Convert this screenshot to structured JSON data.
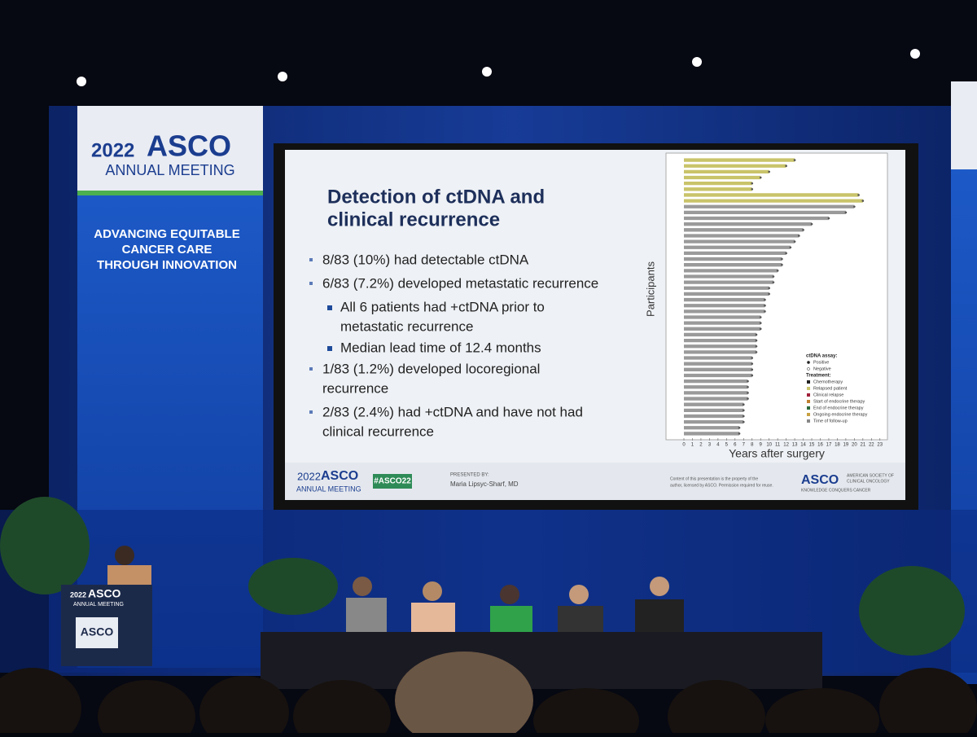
{
  "banner": {
    "year": "2022",
    "brand": "ASCO",
    "meeting": "ANNUAL MEETING",
    "lines": [
      "ADVANCING EQUITABLE",
      "CANCER CARE",
      "THROUGH INNOVATION"
    ]
  },
  "slide": {
    "title": [
      "Detection of ctDNA and",
      "clinical recurrence"
    ],
    "bullets": [
      {
        "level": 1,
        "lines": [
          "8/83 (10%) had detectable ctDNA"
        ]
      },
      {
        "level": 1,
        "lines": [
          "6/83 (7.2%) developed metastatic recurrence"
        ]
      },
      {
        "level": 2,
        "lines": [
          "All 6 patients had +ctDNA prior to",
          "metastatic recurrence"
        ]
      },
      {
        "level": 2,
        "lines": [
          "Median lead time of 12.4 months"
        ]
      },
      {
        "level": 1,
        "lines": [
          "1/83 (1.2%) developed locoregional",
          "recurrence"
        ]
      },
      {
        "level": 1,
        "lines": [
          "2/83 (2.4%) had +ctDNA and have not had",
          "clinical recurrence"
        ]
      }
    ],
    "footer": {
      "year": "2022",
      "brand": "ASCO",
      "meeting": "ANNUAL MEETING",
      "hashtag": "#ASCO22",
      "presented_by": "PRESENTED BY:",
      "presenter": "Maria Lipsyc-Sharf, MD",
      "notice": [
        "Content of this presentation is the property of the",
        "author, licensed by ASCO. Permission required for reuse."
      ],
      "society": "ASCO",
      "society_full": [
        "AMERICAN SOCIETY OF",
        "CLINICAL ONCOLOGY"
      ],
      "motto": "KNOWLEDGE CONQUERS CANCER"
    }
  },
  "chart_data": {
    "type": "swimmer",
    "ylabel": "Participants",
    "xlabel": "Years after surgery",
    "xlim": [
      0,
      23.5
    ],
    "xticks": [
      0,
      1,
      2,
      3,
      4,
      5,
      6,
      7,
      8,
      9,
      10,
      11,
      12,
      13,
      14,
      15,
      16,
      17,
      18,
      19,
      20,
      21,
      22,
      23
    ],
    "series": [
      {
        "color": "#c9c46a",
        "values": [
          13,
          12,
          10,
          9,
          8,
          8,
          20.5,
          21
        ]
      },
      {
        "color": "#9a9a9a",
        "values": [
          20,
          19,
          17,
          15,
          14,
          13.5,
          13,
          12.5,
          12,
          11.5,
          11.5,
          11,
          10.5,
          10.5,
          10,
          10,
          9.5,
          9.5,
          9.5,
          9,
          9,
          9,
          8.5,
          8.5,
          8.5,
          8.5,
          8,
          8,
          8,
          8,
          7.5,
          7.5,
          7.5,
          7.5,
          7,
          7,
          7,
          7,
          6.5,
          6.5
        ]
      }
    ],
    "legend": {
      "assay_title": "ctDNA assay:",
      "assay": [
        "Positive",
        "Negative"
      ],
      "treatment_title": "Treatment:",
      "treatment": [
        {
          "label": "Chemotherapy",
          "color": "#222"
        },
        {
          "label": "Relapsed patient",
          "color": "#c9c46a"
        },
        {
          "label": "Clinical relapse",
          "color": "#a0203a"
        },
        {
          "label": "Start of endocrine therapy",
          "color": "#c08030"
        },
        {
          "label": "End of endocrine therapy",
          "color": "#2a6a3a"
        },
        {
          "label": "Ongoing endocrine therapy",
          "color": "#c8a040"
        },
        {
          "label": "Time of follow-up",
          "color": "#888"
        }
      ]
    }
  },
  "podium": {
    "year": "2022",
    "brand": "ASCO",
    "meeting": "ANNUAL MEETING",
    "logo": "ASCO"
  }
}
